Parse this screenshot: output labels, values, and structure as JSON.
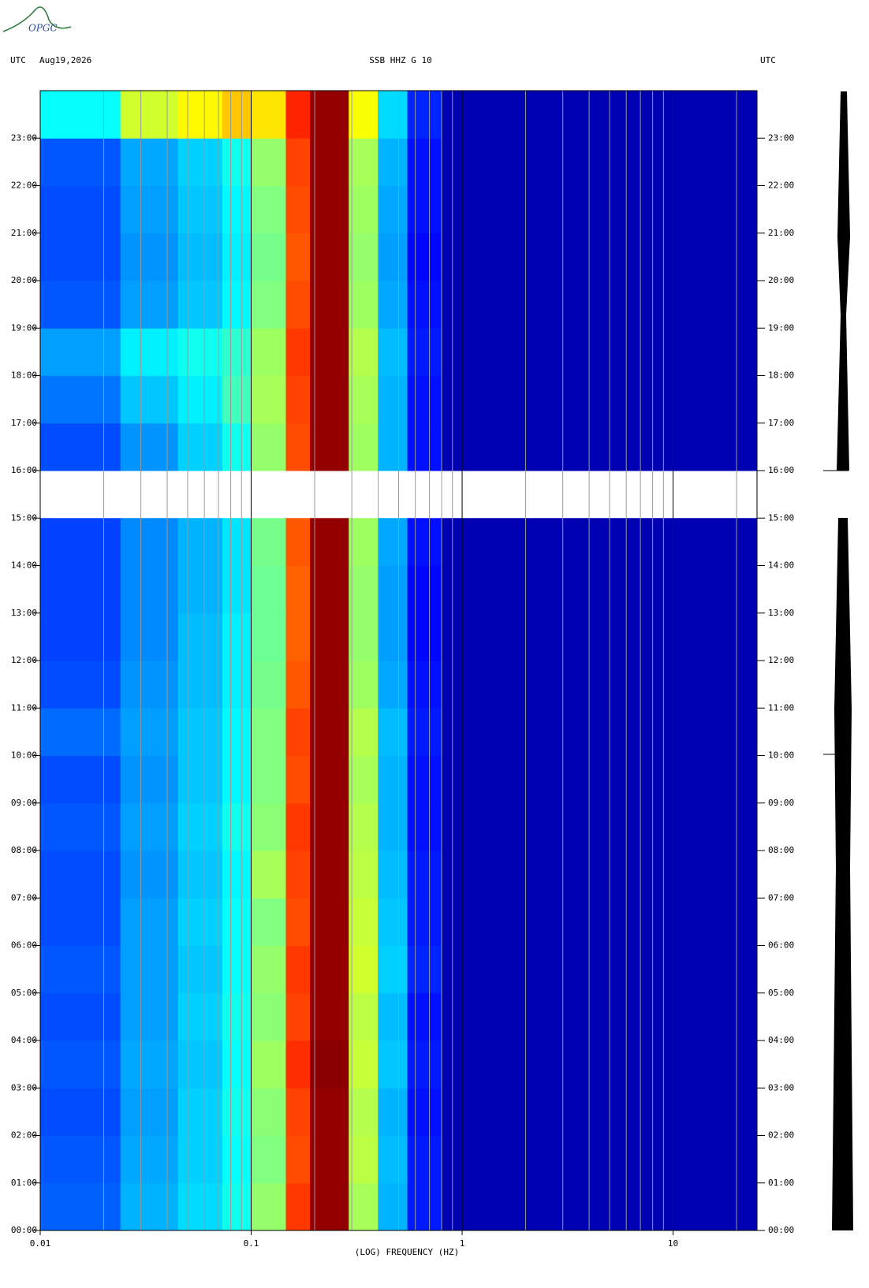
{
  "logo": "OPGC",
  "chart_data": {
    "type": "spectrogram",
    "header_left": "UTC",
    "date": "Aug19,2026",
    "title": "SSB HHZ G 10",
    "header_right": "UTC",
    "x_label": "(LOG) FREQUENCY (HZ)",
    "xscale": "log",
    "xlim": [
      0.01,
      25
    ],
    "xticks": [
      0.01,
      0.1,
      1,
      10
    ],
    "xminor": [
      0.02,
      0.03,
      0.04,
      0.05,
      0.06,
      0.07,
      0.08,
      0.09,
      0.2,
      0.3,
      0.4,
      0.5,
      0.6,
      0.7,
      0.8,
      0.9,
      2,
      3,
      4,
      5,
      6,
      7,
      8,
      9,
      20
    ],
    "ylim": [
      0,
      24
    ],
    "yticks": [
      {
        "value": 0,
        "label": "00:00"
      },
      {
        "value": 1,
        "label": "01:00"
      },
      {
        "value": 2,
        "label": "02:00"
      },
      {
        "value": 3,
        "label": "03:00"
      },
      {
        "value": 4,
        "label": "04:00"
      },
      {
        "value": 5,
        "label": "05:00"
      },
      {
        "value": 6,
        "label": "06:00"
      },
      {
        "value": 7,
        "label": "07:00"
      },
      {
        "value": 8,
        "label": "08:00"
      },
      {
        "value": 9,
        "label": "09:00"
      },
      {
        "value": 10,
        "label": "10:00"
      },
      {
        "value": 11,
        "label": "11:00"
      },
      {
        "value": 12,
        "label": "12:00"
      },
      {
        "value": 13,
        "label": "13:00"
      },
      {
        "value": 14,
        "label": "14:00"
      },
      {
        "value": 15,
        "label": "15:00"
      },
      {
        "value": 16,
        "label": "16:00"
      },
      {
        "value": 17,
        "label": "17:00"
      },
      {
        "value": 18,
        "label": "18:00"
      },
      {
        "value": 19,
        "label": "19:00"
      },
      {
        "value": 20,
        "label": "20:00"
      },
      {
        "value": 21,
        "label": "21:00"
      },
      {
        "value": 22,
        "label": "22:00"
      },
      {
        "value": 23,
        "label": "23:00"
      }
    ],
    "xbins": [
      0.01,
      0.024,
      0.045,
      0.073,
      0.1,
      0.146,
      0.19,
      0.29,
      0.4,
      0.55,
      0.8,
      25
    ],
    "ybins": [
      0,
      1,
      2,
      3,
      4,
      5,
      6,
      7,
      8,
      9,
      10,
      11,
      12,
      13,
      14,
      15,
      16,
      17,
      18,
      19,
      20,
      21,
      22,
      23,
      24
    ],
    "level_range": [
      0,
      10
    ],
    "values": [
      [
        2.2,
        3.0,
        3.4,
        3.9,
        5.2,
        8.2,
        9.8,
        5.4,
        3.0,
        1.5,
        0.5
      ],
      [
        2.1,
        2.9,
        3.3,
        3.8,
        5.0,
        8.0,
        9.8,
        5.6,
        3.1,
        1.5,
        0.5
      ],
      [
        2.0,
        2.8,
        3.3,
        3.9,
        5.1,
        8.1,
        9.8,
        5.5,
        3.0,
        1.4,
        0.5
      ],
      [
        2.1,
        2.9,
        3.2,
        3.8,
        5.3,
        8.3,
        9.9,
        5.7,
        3.2,
        1.5,
        0.5
      ],
      [
        2.0,
        2.8,
        3.3,
        3.9,
        5.1,
        8.1,
        9.8,
        5.6,
        3.1,
        1.4,
        0.5
      ],
      [
        2.1,
        2.8,
        3.2,
        3.8,
        5.2,
        8.2,
        9.8,
        5.8,
        3.3,
        1.6,
        0.5
      ],
      [
        2.0,
        2.8,
        3.3,
        3.8,
        5.0,
        8.0,
        9.8,
        5.7,
        3.2,
        1.5,
        0.5
      ],
      [
        2.0,
        2.7,
        3.2,
        3.7,
        5.4,
        8.1,
        9.8,
        5.6,
        3.1,
        1.5,
        0.5
      ],
      [
        2.1,
        2.8,
        3.3,
        3.9,
        5.1,
        8.2,
        9.8,
        5.5,
        3.0,
        1.4,
        0.5
      ],
      [
        2.0,
        2.7,
        3.2,
        3.7,
        5.0,
        8.0,
        9.8,
        5.4,
        3.0,
        1.4,
        0.5
      ],
      [
        2.3,
        2.8,
        3.2,
        3.7,
        5.0,
        8.1,
        9.8,
        5.5,
        3.1,
        1.5,
        0.5
      ],
      [
        2.0,
        2.7,
        3.1,
        3.6,
        4.9,
        7.9,
        9.8,
        5.3,
        2.9,
        1.4,
        0.5
      ],
      [
        1.9,
        2.6,
        3.1,
        3.6,
        4.8,
        7.8,
        9.8,
        5.2,
        2.8,
        1.3,
        0.5
      ],
      [
        1.9,
        2.6,
        3.0,
        3.5,
        4.8,
        7.8,
        9.8,
        5.2,
        2.8,
        1.3,
        0.5
      ],
      [
        1.9,
        2.6,
        3.0,
        3.5,
        4.9,
        7.9,
        9.8,
        5.3,
        2.9,
        1.4,
        0.5
      ],
      null,
      [
        2.0,
        2.7,
        3.3,
        3.9,
        5.2,
        8.0,
        9.8,
        5.3,
        3.0,
        1.4,
        0.5
      ],
      [
        2.4,
        3.2,
        3.6,
        4.4,
        5.4,
        8.1,
        9.8,
        5.4,
        3.0,
        1.4,
        0.5
      ],
      [
        2.8,
        3.6,
        3.9,
        4.2,
        5.3,
        8.2,
        9.8,
        5.5,
        3.1,
        1.5,
        0.5
      ],
      [
        2.1,
        2.8,
        3.2,
        3.7,
        5.0,
        8.0,
        9.8,
        5.3,
        2.9,
        1.4,
        0.5
      ],
      [
        2.0,
        2.7,
        3.1,
        3.6,
        4.9,
        7.9,
        9.8,
        5.2,
        2.8,
        1.3,
        0.5
      ],
      [
        2.0,
        2.8,
        3.2,
        3.7,
        5.0,
        8.0,
        9.8,
        5.3,
        2.9,
        1.4,
        0.5
      ],
      [
        2.1,
        2.9,
        3.3,
        3.9,
        5.2,
        8.1,
        9.8,
        5.4,
        3.0,
        1.4,
        0.5
      ],
      [
        3.8,
        5.8,
        6.3,
        6.8,
        6.5,
        8.4,
        9.8,
        6.2,
        3.4,
        1.6,
        0.5
      ]
    ]
  }
}
